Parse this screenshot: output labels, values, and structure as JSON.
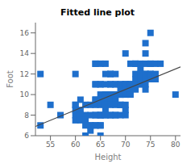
{
  "chart_data": {
    "type": "scatter",
    "title": "Fitted line plot",
    "xlabel": "Height",
    "ylabel": "Foot",
    "xlim": [
      52,
      81
    ],
    "ylim": [
      6,
      17
    ],
    "xticks": [
      55,
      60,
      65,
      70,
      75,
      80
    ],
    "yticks": [
      6,
      8,
      10,
      12,
      14,
      16
    ],
    "grid": false,
    "series": [
      {
        "type": "scatter",
        "marker": "square",
        "color": "#1E6FCC",
        "x": [
          53,
          53,
          55,
          57,
          60,
          60,
          60,
          60,
          60,
          60,
          61,
          61,
          61,
          61,
          62,
          62,
          62,
          62,
          62,
          63,
          63,
          63,
          63,
          63,
          64,
          64,
          64,
          64,
          64,
          64,
          64,
          64,
          64,
          64,
          64,
          65,
          65,
          65,
          65,
          65,
          65,
          65,
          65,
          65,
          65,
          65,
          65,
          66,
          66,
          66,
          66,
          66,
          66,
          66,
          66,
          66,
          66,
          67,
          67,
          67,
          67,
          67,
          67,
          67,
          67,
          67,
          67,
          67,
          68,
          68,
          68,
          68,
          68,
          68,
          68,
          68,
          68,
          69,
          69,
          69,
          69,
          69,
          69,
          69,
          69,
          70,
          70,
          70,
          70,
          70,
          70,
          70,
          70,
          70,
          71,
          71,
          71,
          71,
          71,
          71,
          72,
          72,
          72,
          72,
          72,
          72,
          72,
          73,
          73,
          73,
          73,
          73,
          73,
          74,
          74,
          74,
          74,
          74,
          74,
          74,
          74,
          75,
          75,
          75,
          75,
          75,
          75,
          76,
          76,
          76,
          77,
          80
        ],
        "values": [
          12,
          7,
          9,
          8,
          12,
          9,
          9,
          8,
          7.5,
          8.5,
          9.5,
          8.5,
          8,
          7.5,
          8,
          7.5,
          6,
          7,
          9,
          9,
          8,
          7,
          7,
          6.5,
          13,
          13,
          11,
          11,
          9.5,
          9.5,
          9,
          8,
          8,
          7,
          7,
          13,
          11,
          11,
          10,
          9.5,
          9,
          8,
          8,
          8,
          7,
          7,
          6,
          13,
          12,
          11,
          10,
          10,
          9.5,
          9,
          8.5,
          8,
          8,
          12,
          12,
          11,
          11,
          10,
          10,
          9.5,
          9.5,
          9,
          8,
          8,
          12,
          11,
          11,
          10,
          10,
          9.5,
          9,
          8,
          8,
          11,
          11,
          10.5,
          10,
          10,
          9,
          9,
          8,
          14,
          11,
          11,
          11,
          10.5,
          10,
          9,
          8.5,
          8,
          13,
          11,
          11,
          11,
          10.5,
          10,
          13,
          13,
          13,
          12,
          11.5,
          11,
          10.5,
          13,
          12.5,
          12,
          11.5,
          11,
          11,
          15,
          14,
          13,
          12,
          12,
          11.5,
          11,
          10.5,
          16,
          13,
          13,
          12,
          12,
          11.5,
          13,
          12,
          11.5,
          13,
          10
        ]
      },
      {
        "type": "line",
        "line_style": "solid",
        "color": "#444444",
        "x": [
          52,
          81
        ],
        "values": [
          6.9,
          12.7
        ]
      }
    ]
  }
}
